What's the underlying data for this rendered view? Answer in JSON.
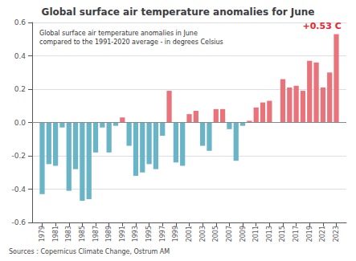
{
  "chart_data": {
    "type": "bar",
    "title": "Global surface air temperature anomalies for June",
    "subtitle": [
      "Global surface air temperature anomalies in June",
      "compared to the 1991-2020 average - in degrees Celsius"
    ],
    "source": "Sources : Copernicus Climate Change, Ostrum AM",
    "annotations": [
      {
        "text": "+0.53 C",
        "x": 2023,
        "y": 0.53,
        "color": "#e8252e"
      }
    ],
    "x": [
      1979,
      1980,
      1981,
      1982,
      1983,
      1984,
      1985,
      1986,
      1987,
      1988,
      1989,
      1990,
      1991,
      1992,
      1993,
      1994,
      1995,
      1996,
      1997,
      1998,
      1999,
      2000,
      2001,
      2002,
      2003,
      2004,
      2005,
      2006,
      2007,
      2008,
      2009,
      2010,
      2011,
      2012,
      2013,
      2015,
      2016,
      2017,
      2018,
      2019,
      2020,
      2021,
      2022,
      2023
    ],
    "values": [
      -0.43,
      -0.25,
      -0.26,
      -0.03,
      -0.41,
      -0.28,
      -0.47,
      -0.46,
      -0.18,
      -0.03,
      -0.18,
      -0.02,
      0.03,
      -0.14,
      -0.32,
      -0.3,
      -0.25,
      -0.28,
      -0.08,
      0.19,
      -0.24,
      -0.26,
      0.05,
      0.07,
      -0.14,
      -0.17,
      0.08,
      0.08,
      -0.04,
      -0.23,
      -0.02,
      0.01,
      0.09,
      0.12,
      0.13,
      0.26,
      0.21,
      0.22,
      0.19,
      0.37,
      0.36,
      0.21,
      0.3,
      0.53
    ],
    "colors": [
      "#6ab4c8",
      "#6ab4c8",
      "#6ab4c8",
      "#6ab4c8",
      "#6ab4c8",
      "#6ab4c8",
      "#6ab4c8",
      "#6ab4c8",
      "#6ab4c8",
      "#6ab4c8",
      "#6ab4c8",
      "#6ab4c8",
      "#e8737a",
      "#6ab4c8",
      "#6ab4c8",
      "#6ab4c8",
      "#6ab4c8",
      "#6ab4c8",
      "#6ab4c8",
      "#e8737a",
      "#6ab4c8",
      "#6ab4c8",
      "#e8737a",
      "#e8737a",
      "#6ab4c8",
      "#6ab4c8",
      "#e8737a",
      "#e8737a",
      "#6ab4c8",
      "#6ab4c8",
      "#6ab4c8",
      "#e8737a",
      "#e8737a",
      "#e8737a",
      "#e8737a",
      "#e8737a",
      "#e8737a",
      "#e8737a",
      "#e8737a",
      "#e8737a",
      "#e8737a",
      "#e8737a",
      "#e8737a",
      "#e8737a"
    ],
    "xlim": [
      1977.5,
      2024.5
    ],
    "xticks": [
      1979,
      1981,
      1983,
      1985,
      1987,
      1989,
      1991,
      1993,
      1995,
      1997,
      1999,
      2001,
      2003,
      2005,
      2007,
      2009,
      2011,
      2013,
      2015,
      2017,
      2019,
      2021,
      2023
    ],
    "ylim": [
      -0.6,
      0.6
    ],
    "yticks": [
      -0.6,
      -0.4,
      -0.2,
      {
        "value": 0,
        "label": "0.0"
      },
      0.2,
      0.4,
      0.6
    ],
    "grid": true
  }
}
